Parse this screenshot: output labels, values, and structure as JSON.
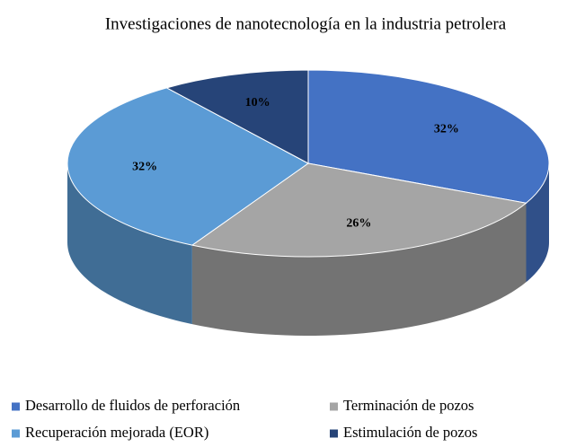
{
  "chart_data": {
    "type": "pie",
    "title": "Investigaciones de nanotecnología en la industria petrolera",
    "categories": [
      "Desarrollo de fluidos de perforación",
      "Terminación de pozos",
      "Recuperación mejorada (EOR)",
      "Estimulación de pozos"
    ],
    "values": [
      32,
      26,
      32,
      10
    ],
    "value_labels": [
      "32%",
      "26%",
      "32%",
      "10%"
    ],
    "colors": [
      "#4472c4",
      "#a5a5a5",
      "#5b9bd5",
      "#264478"
    ]
  }
}
